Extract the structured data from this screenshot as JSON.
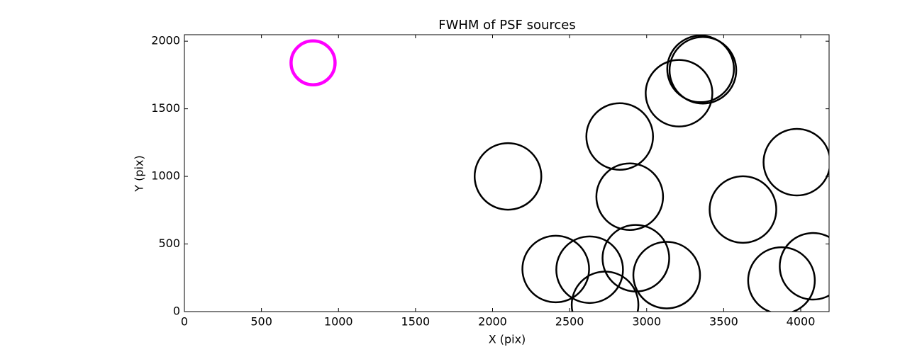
{
  "chart_data": {
    "type": "scatter",
    "title": "FWHM of PSF sources",
    "x_label": "X (pix)",
    "y_label": "Y (pix)",
    "xlim": [
      0,
      4184
    ],
    "ylim": [
      0,
      2048
    ],
    "xticks": [
      0,
      500,
      1000,
      1500,
      2000,
      2500,
      3000,
      3500,
      4000
    ],
    "yticks": [
      0,
      500,
      1000,
      1500,
      2000
    ],
    "series": [
      {
        "color": "#000000",
        "x": [
          2100,
          2410,
          2630,
          2730,
          2825,
          2890,
          2930,
          3130,
          3210,
          3350,
          3365,
          3625,
          3975,
          3875,
          4080
        ],
        "values": [
          1000,
          315,
          310,
          50,
          1295,
          850,
          395,
          270,
          1615,
          1795,
          1785,
          755,
          1105,
          230,
          335
        ]
      },
      {
        "color": "#ff00ff",
        "x": [
          835
        ],
        "values": [
          1840
        ]
      }
    ]
  }
}
